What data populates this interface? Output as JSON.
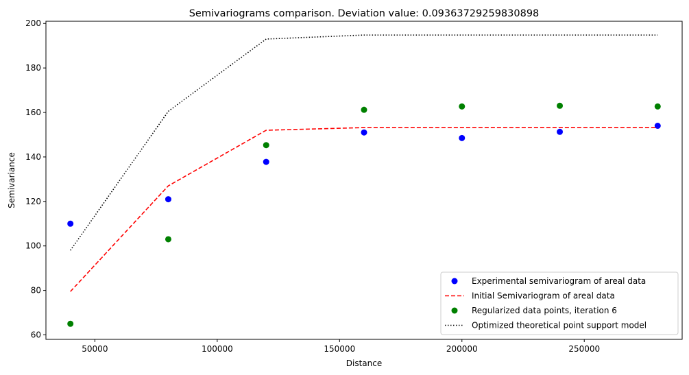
{
  "chart_data": {
    "type": "line",
    "title": "Semivariograms comparison. Deviation value: 0.09363729259830898",
    "xlabel": "Distance",
    "ylabel": "Semivariance",
    "xlim": [
      30000,
      290000
    ],
    "ylim": [
      58,
      201
    ],
    "xticks": [
      50000,
      100000,
      150000,
      200000,
      250000
    ],
    "xtick_labels": [
      "50000",
      "100000",
      "150000",
      "200000",
      "250000"
    ],
    "yticks": [
      60,
      80,
      100,
      120,
      140,
      160,
      180,
      200
    ],
    "ytick_labels": [
      "60",
      "80",
      "100",
      "120",
      "140",
      "160",
      "180",
      "200"
    ],
    "grid": false,
    "legend_position": "lower-right",
    "x": [
      40000,
      80000,
      120000,
      160000,
      200000,
      240000,
      280000
    ],
    "series": [
      {
        "name": "Experimental semivariogram of areal data",
        "style": "points",
        "color": "#0000ff",
        "values": [
          110,
          121,
          137.8,
          151,
          148.5,
          151.3,
          154
        ]
      },
      {
        "name": "Initial Semivariogram of areal data",
        "style": "dashed",
        "color": "#ff0000",
        "values": [
          79.5,
          127,
          152,
          153.2,
          153.2,
          153.2,
          153.2
        ]
      },
      {
        "name": "Regularized data points, iteration 6",
        "style": "points",
        "color": "#008000",
        "values": [
          65,
          103,
          145.3,
          161.2,
          162.7,
          163,
          162.7
        ]
      },
      {
        "name": "Optimized theoretical point support model",
        "style": "dotted",
        "color": "#000000",
        "values": [
          98,
          160.5,
          193,
          194.8,
          194.8,
          194.8,
          194.8
        ]
      }
    ]
  }
}
